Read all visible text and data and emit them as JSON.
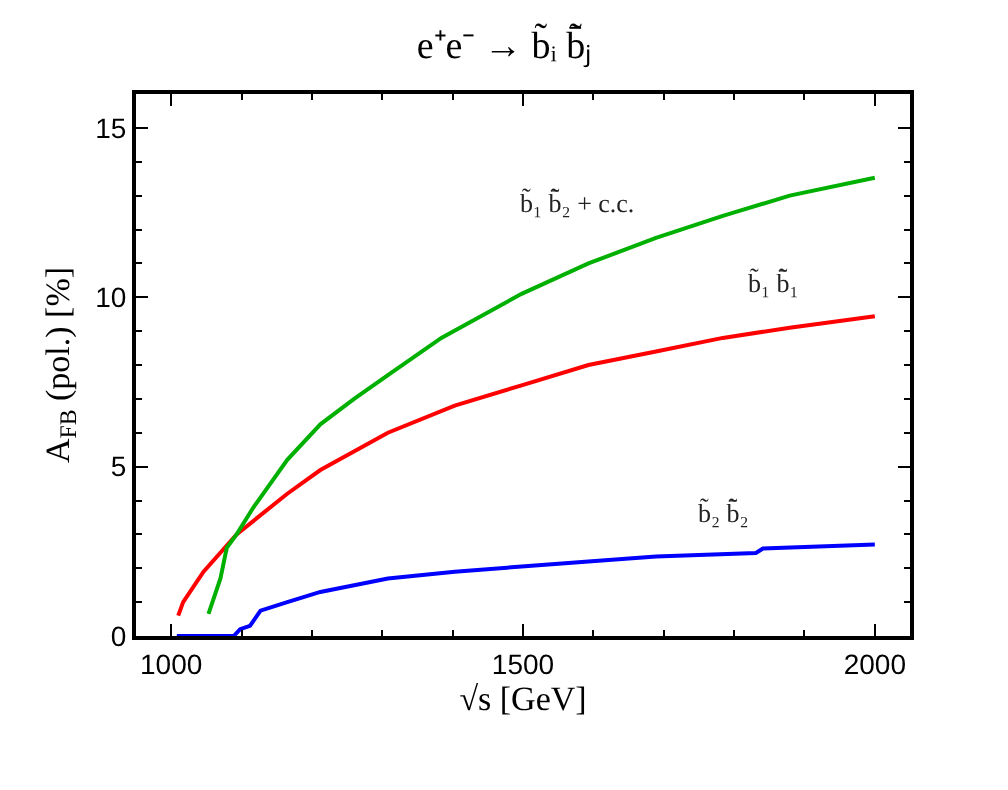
{
  "chart_data": {
    "type": "line",
    "title": "e⁺e⁻ → b̃ᵢ b̃̄ⱼ",
    "xlabel": "√s [GeV]",
    "ylabel": "A$_{FB}$ (pol.) [%]",
    "xlim": [
      950,
      2050
    ],
    "xticks": [
      1000,
      1500,
      2000
    ],
    "ylim": [
      0,
      16
    ],
    "yticks": [
      0,
      5,
      10,
      15
    ],
    "legend": false,
    "marker": "none",
    "line_style": "solid",
    "series": [
      {
        "name": "b̃₁ b̃̄₁",
        "color": "#ff0000",
        "x": [
          1010,
          1017,
          1046,
          1093,
          1165,
          1212,
          1308,
          1403,
          1498,
          1593,
          1689,
          1784,
          1879,
          2000
        ],
        "values": [
          0.6,
          1.0,
          1.9,
          3.0,
          4.2,
          4.9,
          6.0,
          6.8,
          7.4,
          8.0,
          8.4,
          8.8,
          9.1,
          9.44
        ]
      },
      {
        "name": "b̃₁ b̃̄₂ + c.c.",
        "color": "#00b000",
        "x": [
          1053,
          1070,
          1079,
          1093,
          1117,
          1165,
          1212,
          1260,
          1308,
          1384,
          1498,
          1593,
          1689,
          1784,
          1879,
          2000
        ],
        "values": [
          0.65,
          1.7,
          2.6,
          3.0,
          3.8,
          5.2,
          6.25,
          7.0,
          7.7,
          8.8,
          10.1,
          11.0,
          11.75,
          12.4,
          13.0,
          13.53
        ]
      },
      {
        "name": "b̃₂ b̃̄₂",
        "color": "#0000ff",
        "x": [
          1008,
          1089,
          1098,
          1112,
          1127,
          1165,
          1212,
          1308,
          1403,
          1498,
          1593,
          1689,
          1831,
          1841,
          2000
        ],
        "values": [
          0,
          0,
          0.2,
          0.3,
          0.75,
          1.0,
          1.3,
          1.7,
          1.9,
          2.05,
          2.2,
          2.35,
          2.45,
          2.58,
          2.7
        ]
      }
    ]
  }
}
